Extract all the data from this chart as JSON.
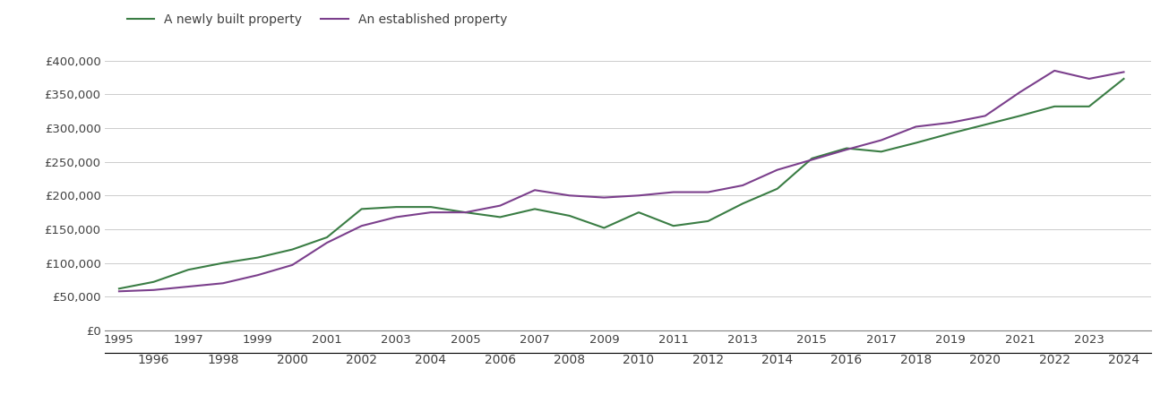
{
  "years": [
    1995,
    1996,
    1997,
    1998,
    1999,
    2000,
    2001,
    2002,
    2003,
    2004,
    2005,
    2006,
    2007,
    2008,
    2009,
    2010,
    2011,
    2012,
    2013,
    2014,
    2015,
    2016,
    2017,
    2018,
    2019,
    2020,
    2021,
    2022,
    2023,
    2024
  ],
  "newly_built": [
    62000,
    72000,
    90000,
    100000,
    108000,
    120000,
    138000,
    180000,
    183000,
    183000,
    175000,
    168000,
    180000,
    170000,
    152000,
    175000,
    155000,
    162000,
    188000,
    210000,
    255000,
    270000,
    265000,
    278000,
    292000,
    305000,
    318000,
    332000,
    332000,
    373000
  ],
  "established": [
    58000,
    60000,
    65000,
    70000,
    82000,
    97000,
    130000,
    155000,
    168000,
    175000,
    175000,
    185000,
    208000,
    200000,
    197000,
    200000,
    205000,
    205000,
    215000,
    238000,
    253000,
    268000,
    282000,
    302000,
    308000,
    318000,
    353000,
    385000,
    373000,
    383000
  ],
  "newly_built_color": "#3a7d44",
  "established_color": "#7b3f8c",
  "line_width": 1.5,
  "legend_labels": [
    "A newly built property",
    "An established property"
  ],
  "yticks": [
    0,
    50000,
    100000,
    150000,
    200000,
    250000,
    300000,
    350000,
    400000
  ],
  "ylim": [
    0,
    430000
  ],
  "xlim": [
    1994.6,
    2024.8
  ],
  "background_color": "#ffffff",
  "grid_color": "#cccccc",
  "font_color": "#404040",
  "tick_fontsize": 9.5
}
